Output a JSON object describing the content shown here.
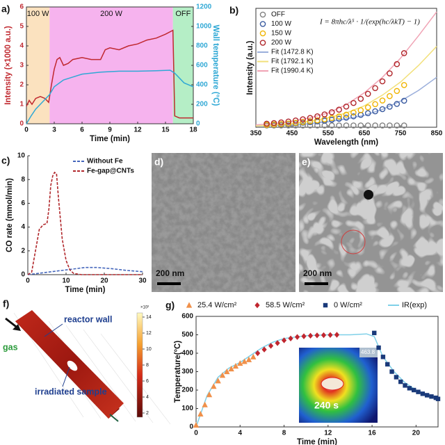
{
  "chart_data": [
    {
      "type": "line",
      "panel_label": "a)",
      "xlabel": "Time (min)",
      "ylabel": "Intensity (×1000 a.u.)",
      "y2label": "Wall temperature (°C)",
      "ycolor": "#c0282f",
      "y2color": "#2fa8d5",
      "frame": true,
      "xlim": [
        0,
        18
      ],
      "xticks": [
        0,
        3,
        6,
        9,
        12,
        15,
        18
      ],
      "ylim": [
        0,
        6
      ],
      "yticks": [
        0,
        1,
        2,
        3,
        4,
        5,
        6
      ],
      "y2lim": [
        0,
        1200
      ],
      "y2ticks": [
        0,
        200,
        400,
        600,
        800,
        1000,
        1200
      ],
      "regions": [
        {
          "label": "100 W",
          "x0": 0,
          "x1": 2.5,
          "color": "#fbe2bf"
        },
        {
          "label": "200 W",
          "x0": 2.5,
          "x1": 15.8,
          "color": "#f6b3ee"
        },
        {
          "label": "OFF",
          "x0": 15.8,
          "x1": 18,
          "color": "#b5eec6"
        }
      ],
      "series": [
        {
          "color": "#c0282f",
          "x": [
            0,
            0.3,
            0.6,
            1,
            1.5,
            2,
            2.4,
            2.7,
            3,
            3.3,
            3.6,
            4,
            4.5,
            5,
            6,
            7,
            8,
            8.5,
            9,
            10,
            11,
            12,
            13,
            14,
            15,
            15.8,
            16,
            16.5,
            17,
            18
          ],
          "values": [
            0.9,
            1.2,
            1.0,
            1.3,
            1.4,
            1.3,
            1.1,
            2.0,
            2.8,
            3.3,
            3.4,
            3.0,
            3.1,
            3.3,
            3.4,
            3.3,
            3.3,
            3.8,
            3.9,
            3.8,
            4.0,
            4.1,
            4.3,
            4.4,
            4.6,
            4.8,
            0.4,
            0.3,
            0.3,
            0.3
          ]
        },
        {
          "color": "#2fa8d5",
          "axis": "y2",
          "x": [
            0,
            0.5,
            1,
            1.5,
            2,
            2.5,
            3,
            4,
            5,
            6,
            8,
            10,
            12,
            14,
            15.5,
            16,
            16.5,
            17,
            18
          ],
          "values": [
            0,
            80,
            150,
            200,
            250,
            300,
            380,
            450,
            480,
            510,
            530,
            540,
            540,
            545,
            550,
            520,
            470,
            420,
            380
          ]
        }
      ]
    },
    {
      "type": "scatter",
      "panel_label": "b)",
      "xlabel": "Wavelength (nm)",
      "ylabel": "Intensity (a.u.)",
      "frame": true,
      "equation": "I = 8πhc/λ⁵ · 1/(exp(hc/λkT) − 1)",
      "legend": "upper left",
      "xlim": [
        350,
        850
      ],
      "xticks": [
        350,
        450,
        550,
        650,
        750,
        850
      ],
      "ylim": [
        0,
        1
      ],
      "yticks": [],
      "series": [
        {
          "name": "OFF",
          "color": "#808080",
          "mode": "markers",
          "marker": "circle",
          "hollow": true,
          "x": [
            380,
            400,
            420,
            440,
            460,
            480,
            500,
            520,
            540,
            560,
            580,
            600,
            620,
            640,
            660,
            680,
            700,
            720,
            740,
            760
          ],
          "values": [
            0.015,
            0.015,
            0.015,
            0.015,
            0.015,
            0.015,
            0.015,
            0.015,
            0.015,
            0.015,
            0.015,
            0.015,
            0.015,
            0.015,
            0.015,
            0.015,
            0.015,
            0.015,
            0.015,
            0.015
          ]
        },
        {
          "name": "100 W",
          "color": "#3a5ba0",
          "mode": "markers",
          "marker": "circle",
          "hollow": true,
          "x": [
            380,
            400,
            420,
            440,
            460,
            480,
            500,
            520,
            540,
            560,
            580,
            600,
            620,
            640,
            660,
            680,
            700,
            720,
            740,
            760
          ],
          "values": [
            0.02,
            0.023,
            0.026,
            0.029,
            0.033,
            0.038,
            0.043,
            0.049,
            0.055,
            0.063,
            0.071,
            0.081,
            0.092,
            0.104,
            0.118,
            0.134,
            0.152,
            0.173,
            0.196,
            0.223
          ]
        },
        {
          "name": "150 W",
          "color": "#f0b400",
          "mode": "markers",
          "marker": "circle",
          "hollow": true,
          "x": [
            380,
            400,
            420,
            440,
            460,
            480,
            500,
            520,
            540,
            560,
            580,
            600,
            620,
            640,
            660,
            680,
            700,
            720,
            740,
            760
          ],
          "values": [
            0.02,
            0.023,
            0.027,
            0.031,
            0.037,
            0.043,
            0.05,
            0.058,
            0.067,
            0.078,
            0.091,
            0.106,
            0.123,
            0.143,
            0.167,
            0.194,
            0.225,
            0.262,
            0.305,
            0.355
          ]
        },
        {
          "name": "200 W",
          "color": "#b0262a",
          "mode": "markers",
          "marker": "circle",
          "hollow": true,
          "x": [
            380,
            400,
            420,
            440,
            460,
            480,
            500,
            520,
            540,
            560,
            580,
            600,
            620,
            640,
            660,
            680,
            700,
            720,
            740,
            760
          ],
          "values": [
            0.03,
            0.035,
            0.041,
            0.048,
            0.057,
            0.067,
            0.078,
            0.092,
            0.108,
            0.126,
            0.148,
            0.174,
            0.204,
            0.239,
            0.281,
            0.329,
            0.386,
            0.453,
            0.531,
            0.623
          ]
        },
        {
          "name": "Fit (1472.8 K)",
          "color": "#9aaedb",
          "mode": "line",
          "x": [
            350,
            400,
            450,
            500,
            550,
            600,
            650,
            700,
            750,
            800,
            850
          ],
          "values": [
            0.01,
            0.015,
            0.02,
            0.03,
            0.045,
            0.07,
            0.1,
            0.15,
            0.22,
            0.31,
            0.42
          ]
        },
        {
          "name": "Fit (1792.1 K)",
          "color": "#f2e07a",
          "mode": "line",
          "x": [
            350,
            400,
            450,
            500,
            550,
            600,
            650,
            700,
            750,
            800,
            850
          ],
          "values": [
            0.01,
            0.02,
            0.03,
            0.05,
            0.08,
            0.12,
            0.18,
            0.27,
            0.38,
            0.52,
            0.68
          ]
        },
        {
          "name": "Fit (1990.4 K)",
          "color": "#f0a3b4",
          "mode": "line",
          "x": [
            350,
            400,
            450,
            500,
            550,
            600,
            650,
            700,
            750,
            800,
            850
          ],
          "values": [
            0.02,
            0.03,
            0.05,
            0.08,
            0.12,
            0.19,
            0.29,
            0.42,
            0.58,
            0.77,
            0.97
          ]
        }
      ]
    },
    {
      "type": "line",
      "panel_label": "c)",
      "xlabel": "Time (min)",
      "ylabel": "CO rate (mmol/min)",
      "frame": false,
      "legend": "upper right",
      "xlim": [
        0,
        30
      ],
      "xticks": [
        0,
        10,
        20,
        30
      ],
      "ylim": [
        0,
        10
      ],
      "yticks": [
        0,
        2,
        4,
        6,
        8,
        10
      ],
      "series": [
        {
          "name": "Without Fe",
          "color": "#4466bb",
          "dash": true,
          "x": [
            0,
            5,
            10,
            15,
            18,
            22,
            26,
            30
          ],
          "values": [
            0,
            0.2,
            0.4,
            0.6,
            0.6,
            0.5,
            0.35,
            0.25
          ]
        },
        {
          "name": "Fe-gap@CNTs",
          "color": "#b0262a",
          "dash": true,
          "x": [
            0,
            1,
            2,
            3,
            4,
            5,
            5.5,
            6,
            6.5,
            7,
            7.5,
            8,
            9,
            10,
            11,
            12,
            14,
            20,
            30
          ],
          "values": [
            0,
            0.2,
            2,
            3.8,
            4.2,
            4.3,
            5.5,
            7.5,
            8.3,
            8.6,
            8.5,
            6.5,
            3,
            1.2,
            0.4,
            0.1,
            0,
            0,
            0
          ]
        }
      ]
    },
    {
      "type": "scatter",
      "panel_label": "g)",
      "xlabel": "Time (min)",
      "ylabel": "Temperature(°C)",
      "frame": true,
      "legend": "top",
      "xlim": [
        0,
        22
      ],
      "xticks": [
        0,
        4,
        8,
        12,
        16,
        20
      ],
      "ylim": [
        0,
        600
      ],
      "yticks": [
        0,
        100,
        200,
        300,
        400,
        500,
        600
      ],
      "inset": {
        "max_label": 463.8,
        "time_label": "240 s"
      },
      "series": [
        {
          "name": "25.4 W/cm²",
          "color": "#f0904a",
          "mode": "markers",
          "marker": "triangle",
          "x": [
            0,
            0.4,
            0.8,
            1.2,
            1.6,
            2,
            2.4,
            2.8,
            3.2,
            3.6,
            4,
            4.4,
            4.8,
            5.2
          ],
          "values": [
            10,
            70,
            120,
            175,
            220,
            250,
            280,
            300,
            315,
            330,
            345,
            355,
            365,
            380
          ]
        },
        {
          "name": "58.5 W/cm²",
          "color": "#c0262f",
          "mode": "markers",
          "marker": "diamond",
          "x": [
            5.6,
            6.2,
            6.8,
            7.4,
            8,
            8.6,
            9.2,
            9.8,
            10.4,
            11,
            11.6,
            12.2,
            12.8
          ],
          "values": [
            400,
            420,
            440,
            455,
            470,
            480,
            488,
            492,
            495,
            497,
            498,
            499,
            500
          ]
        },
        {
          "name": "0 W/cm²",
          "color": "#1a3a7a",
          "mode": "markers",
          "marker": "square",
          "x": [
            16.2,
            16.6,
            17,
            17.4,
            17.8,
            18.2,
            18.6,
            19,
            19.4,
            19.8,
            20.2,
            20.6,
            21,
            21.4,
            21.8,
            22
          ],
          "values": [
            510,
            430,
            380,
            340,
            300,
            270,
            245,
            225,
            210,
            200,
            190,
            180,
            172,
            165,
            158,
            152
          ]
        },
        {
          "name": "IR(exp)",
          "color": "#7fd0e8",
          "mode": "line",
          "x": [
            0,
            1,
            2,
            3,
            4,
            5,
            6,
            7,
            8,
            10,
            12,
            14,
            15.5,
            16.2,
            17,
            18,
            19,
            20,
            21,
            22
          ],
          "values": [
            0,
            170,
            270,
            320,
            350,
            390,
            430,
            460,
            480,
            495,
            500,
            500,
            505,
            490,
            380,
            300,
            240,
            200,
            175,
            155
          ]
        }
      ]
    }
  ],
  "images": [
    {
      "label": "d)",
      "scale_bar": "200 nm"
    },
    {
      "label": "e)",
      "scale_bar": "200 nm"
    }
  ],
  "simulation": {
    "label": "f)",
    "annotations": [
      "reactor wall",
      "gas",
      "irradiated sample"
    ],
    "colorbar_unit": "×10²",
    "colorbar_ticks": [
      2,
      4,
      6,
      8,
      10,
      12,
      14
    ]
  }
}
